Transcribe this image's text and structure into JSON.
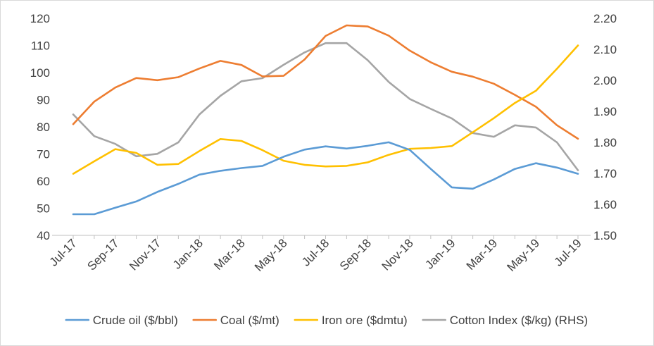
{
  "chart_data": {
    "type": "line",
    "title": "",
    "xlabel": "",
    "ylabel": "",
    "y2label": "",
    "ylim": [
      40,
      120
    ],
    "y2lim": [
      1.5,
      2.2
    ],
    "y_ticks": [
      "120",
      "110",
      "100",
      "90",
      "80",
      "70",
      "60",
      "50",
      "40"
    ],
    "y2_ticks": [
      "2.20",
      "2.10",
      "2.00",
      "1.90",
      "1.80",
      "1.70",
      "1.60",
      "1.50"
    ],
    "grid": false,
    "legend_position": "bottom",
    "x": [
      "Jul-17",
      "Aug-17",
      "Sep-17",
      "Oct-17",
      "Nov-17",
      "Dec-17",
      "Jan-18",
      "Feb-18",
      "Mar-18",
      "Apr-18",
      "May-18",
      "Jun-18",
      "Jul-18",
      "Aug-18",
      "Sep-18",
      "Oct-18",
      "Nov-18",
      "Dec-18",
      "Jan-19",
      "Feb-19",
      "Mar-19",
      "Apr-19",
      "May-19",
      "Jun-19",
      "Jul-19"
    ],
    "x_tick_labels": [
      "Jul-17",
      "Sep-17",
      "Nov-17",
      "Jan-18",
      "Mar-18",
      "May-18",
      "Jul-18",
      "Sep-18",
      "Nov-18",
      "Jan-19",
      "Mar-19",
      "May-19",
      "Jul-19"
    ],
    "series": [
      {
        "name": "Crude oil ($/bbl)",
        "axis": "left",
        "color": "#5b9bd5",
        "values": [
          47.8,
          47.8,
          50.2,
          52.5,
          56.0,
          59.0,
          62.4,
          63.8,
          64.8,
          65.6,
          69.0,
          71.6,
          72.8,
          72.0,
          73.0,
          74.3,
          71.5,
          64.5,
          57.7,
          57.2,
          60.6,
          64.5,
          66.6,
          65.0,
          62.7
        ]
      },
      {
        "name": "Coal ($/mt)",
        "axis": "left",
        "color": "#ed7d31",
        "values": [
          81.0,
          89.3,
          94.5,
          98.0,
          97.2,
          98.3,
          101.5,
          104.3,
          102.8,
          98.6,
          98.8,
          104.8,
          113.5,
          117.4,
          117.0,
          113.6,
          108.1,
          103.8,
          100.3,
          98.5,
          95.9,
          91.8,
          87.4,
          80.6,
          75.6
        ]
      },
      {
        "name": "Iron ore ($dmtu)",
        "axis": "left",
        "color": "#ffc000",
        "values": [
          62.7,
          67.3,
          71.8,
          70.4,
          66.0,
          66.3,
          71.1,
          75.5,
          74.8,
          71.4,
          67.5,
          66.0,
          65.4,
          65.6,
          66.9,
          69.7,
          71.9,
          72.2,
          72.9,
          78.0,
          83.2,
          88.8,
          93.3,
          101.4,
          110.0
        ]
      },
      {
        "name": "Cotton Index ($/kg) (RHS)",
        "axis": "right",
        "color": "#a5a5a5",
        "values": [
          1.89,
          1.82,
          1.795,
          1.755,
          1.763,
          1.8,
          1.89,
          1.95,
          1.997,
          2.007,
          2.05,
          2.09,
          2.12,
          2.12,
          2.065,
          1.995,
          1.94,
          1.908,
          1.877,
          1.83,
          1.818,
          1.855,
          1.848,
          1.8,
          1.71
        ]
      }
    ]
  }
}
